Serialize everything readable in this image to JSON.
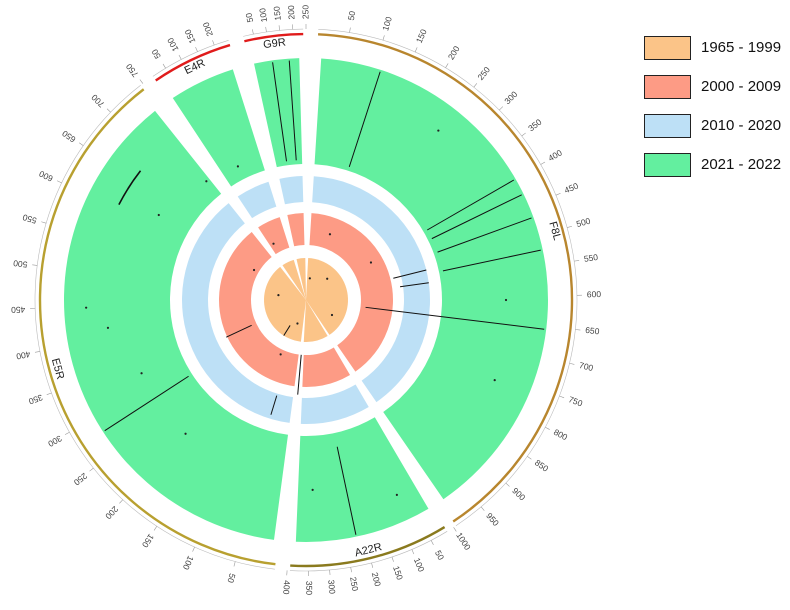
{
  "chart_data": {
    "type": "circos",
    "segments": [
      {
        "name": "F8L",
        "min": 0,
        "max": 1000,
        "ticks": [
          50,
          100,
          150,
          200,
          250,
          300,
          350,
          400,
          450,
          500,
          550,
          600,
          650,
          700,
          750,
          800,
          850,
          900,
          950,
          1000
        ],
        "color": "#b8862e"
      },
      {
        "name": "A22R",
        "min": 0,
        "max": 400,
        "ticks": [
          50,
          100,
          150,
          200,
          250,
          300,
          350,
          400
        ],
        "color": "#8a7a1e"
      },
      {
        "name": "E5R",
        "min": 0,
        "max": 750,
        "ticks": [
          50,
          100,
          150,
          200,
          250,
          300,
          350,
          400,
          450,
          500,
          550,
          600,
          650,
          700,
          750
        ],
        "color": "#b8a030"
      },
      {
        "name": "E4R",
        "min": 0,
        "max": 250,
        "ticks": [
          50,
          100,
          150,
          200
        ],
        "color": "#e01b1b"
      },
      {
        "name": "G9R",
        "min": 0,
        "max": 250,
        "ticks": [
          50,
          100,
          150,
          200,
          250
        ],
        "color": "#e01b1b"
      }
    ],
    "tracks": [
      {
        "period": "1965 - 1999",
        "color": "#fbc488"
      },
      {
        "period": "2000 - 2009",
        "color": "#fd9b85"
      },
      {
        "period": "2010 - 2020",
        "color": "#bde0f6"
      },
      {
        "period": "2021 - 2022",
        "color": "#63ef9f"
      }
    ]
  },
  "legend": {
    "items": [
      {
        "label": "1965 - 1999",
        "color": "#fbc488"
      },
      {
        "label": "2000 - 2009",
        "color": "#fd9b85"
      },
      {
        "label": "2010 - 2020",
        "color": "#bde0f6"
      },
      {
        "label": "2021 - 2022",
        "color": "#63ef9f"
      }
    ]
  }
}
